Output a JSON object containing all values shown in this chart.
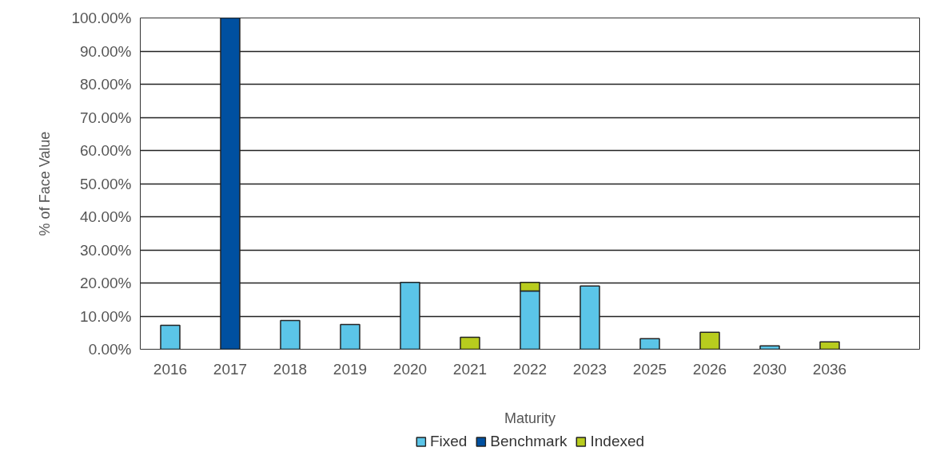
{
  "chart_data": {
    "type": "bar",
    "stacked": true,
    "xlabel": "Maturity",
    "ylabel": "% of Face Value",
    "categories": [
      "2016",
      "2017",
      "2018",
      "2019",
      "2020",
      "2021",
      "2022",
      "2023",
      "2025",
      "2026",
      "2030",
      "2036",
      null
    ],
    "series": [
      {
        "name": "Fixed",
        "color": "#5bc5e8",
        "values": [
          7.2,
          null,
          8.7,
          7.5,
          20.2,
          null,
          17.6,
          19.1,
          3.2,
          null,
          1.0,
          null,
          null
        ]
      },
      {
        "name": "Benchmark",
        "color": "#0050a0",
        "values": [
          null,
          100,
          null,
          null,
          null,
          null,
          null,
          null,
          null,
          null,
          null,
          null,
          null
        ]
      },
      {
        "name": "Indexed",
        "color": "#b8cc1e",
        "values": [
          null,
          null,
          null,
          null,
          null,
          3.6,
          2.6,
          null,
          null,
          5.1,
          null,
          2.2,
          null
        ]
      }
    ],
    "ylim": [
      0,
      100
    ],
    "yticks": [
      {
        "value": 0,
        "label": "0.00%"
      },
      {
        "value": 10,
        "label": "10.00%"
      },
      {
        "value": 20,
        "label": "20.00%"
      },
      {
        "value": 30,
        "label": "30.00%"
      },
      {
        "value": 40,
        "label": "40.00%"
      },
      {
        "value": 50,
        "label": "50.00%"
      },
      {
        "value": 60,
        "label": "60.00%"
      },
      {
        "value": 70,
        "label": "70.00%"
      },
      {
        "value": 80,
        "label": "80.00%"
      },
      {
        "value": 90,
        "label": "90.00%"
      },
      {
        "value": 100,
        "label": "100.00%"
      }
    ],
    "grid": "y",
    "legend": "bottom"
  }
}
